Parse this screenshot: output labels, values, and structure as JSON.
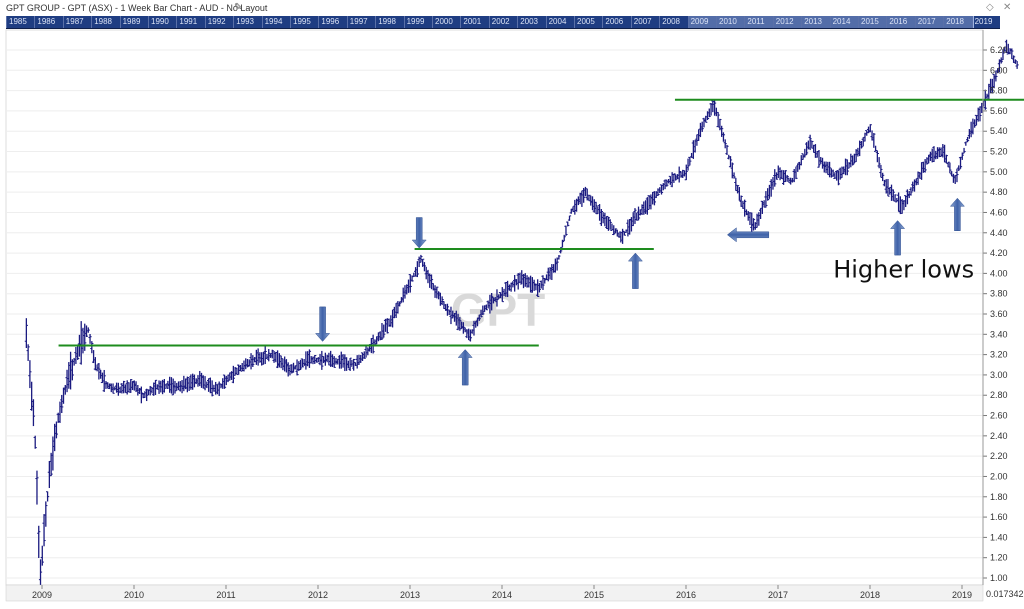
{
  "window": {
    "title": "GPT GROUP - GPT (ASX) - 1 Week Bar Chart - AUD - No Layout",
    "edit_icon": "pencil-icon",
    "extra_icons": [
      "diamond-icon",
      "close-icon"
    ]
  },
  "year_strip": {
    "labels": [
      "1985",
      "1986",
      "1987",
      "1988",
      "1989",
      "1990",
      "1991",
      "1992",
      "1993",
      "1994",
      "1995",
      "1996",
      "1997",
      "1998",
      "1999",
      "2000",
      "2001",
      "2002",
      "2003",
      "2004",
      "2005",
      "2006",
      "2007",
      "2008",
      "2009",
      "2010",
      "2011",
      "2012",
      "2013",
      "2014",
      "2015",
      "2016",
      "2017",
      "2018",
      "2019"
    ],
    "selected_from": "2009",
    "selected_to": "2018"
  },
  "chart_data": {
    "type": "bar",
    "subtype": "ohlc-weekly",
    "symbol": "GPT",
    "xlabel": "",
    "ylabel": "",
    "x_ticks": [
      "2009",
      "2010",
      "2011",
      "2012",
      "2013",
      "2014",
      "2015",
      "2016",
      "2017",
      "2018",
      "2019"
    ],
    "y_ticks": [
      "1.00",
      "1.20",
      "1.40",
      "1.60",
      "1.80",
      "2.00",
      "2.20",
      "2.40",
      "2.60",
      "2.80",
      "3.00",
      "3.20",
      "3.40",
      "3.60",
      "3.80",
      "4.00",
      "4.20",
      "4.40",
      "4.60",
      "4.80",
      "5.00",
      "5.20",
      "5.40",
      "5.60",
      "5.80",
      "6.00",
      "6.20"
    ],
    "ylim": [
      0.93,
      6.38
    ],
    "x_range": [
      2008.82,
      2019.12
    ],
    "corner_readout": "0.017342",
    "grid": "horizontal",
    "series_color": "#1a1a80",
    "price_path": [
      [
        2008.83,
        3.4
      ],
      [
        2008.92,
        2.5
      ],
      [
        2008.98,
        1.0
      ],
      [
        2009.08,
        2.0
      ],
      [
        2009.18,
        2.6
      ],
      [
        2009.28,
        2.95
      ],
      [
        2009.4,
        3.25
      ],
      [
        2009.5,
        3.45
      ],
      [
        2009.58,
        3.1
      ],
      [
        2009.7,
        2.9
      ],
      [
        2009.85,
        2.85
      ],
      [
        2010.0,
        2.9
      ],
      [
        2010.1,
        2.8
      ],
      [
        2010.3,
        2.9
      ],
      [
        2010.5,
        2.88
      ],
      [
        2010.7,
        2.95
      ],
      [
        2010.9,
        2.85
      ],
      [
        2011.05,
        3.0
      ],
      [
        2011.3,
        3.15
      ],
      [
        2011.5,
        3.2
      ],
      [
        2011.7,
        3.05
      ],
      [
        2011.9,
        3.15
      ],
      [
        2012.1,
        3.15
      ],
      [
        2012.4,
        3.1
      ],
      [
        2012.6,
        3.3
      ],
      [
        2012.8,
        3.55
      ],
      [
        2013.0,
        3.9
      ],
      [
        2013.12,
        4.15
      ],
      [
        2013.2,
        3.95
      ],
      [
        2013.4,
        3.65
      ],
      [
        2013.55,
        3.5
      ],
      [
        2013.65,
        3.38
      ],
      [
        2013.8,
        3.65
      ],
      [
        2014.0,
        3.8
      ],
      [
        2014.2,
        3.95
      ],
      [
        2014.4,
        3.85
      ],
      [
        2014.6,
        4.1
      ],
      [
        2014.75,
        4.6
      ],
      [
        2014.9,
        4.8
      ],
      [
        2015.1,
        4.55
      ],
      [
        2015.3,
        4.35
      ],
      [
        2015.45,
        4.55
      ],
      [
        2015.6,
        4.7
      ],
      [
        2015.8,
        4.9
      ],
      [
        2016.0,
        5.0
      ],
      [
        2016.15,
        5.4
      ],
      [
        2016.3,
        5.68
      ],
      [
        2016.45,
        5.2
      ],
      [
        2016.6,
        4.7
      ],
      [
        2016.75,
        4.45
      ],
      [
        2016.9,
        4.8
      ],
      [
        2017.0,
        5.0
      ],
      [
        2017.15,
        4.9
      ],
      [
        2017.35,
        5.3
      ],
      [
        2017.5,
        5.05
      ],
      [
        2017.65,
        4.95
      ],
      [
        2017.85,
        5.15
      ],
      [
        2018.0,
        5.45
      ],
      [
        2018.15,
        4.9
      ],
      [
        2018.35,
        4.65
      ],
      [
        2018.5,
        4.9
      ],
      [
        2018.65,
        5.15
      ],
      [
        2018.8,
        5.2
      ],
      [
        2018.92,
        4.9
      ],
      [
        2019.05,
        5.3
      ],
      [
        2019.2,
        5.6
      ],
      [
        2019.35,
        5.9
      ],
      [
        2019.48,
        6.25
      ],
      [
        2019.6,
        6.05
      ]
    ],
    "resistance_lines": [
      {
        "x_start": 2009.18,
        "x_end": 2014.4,
        "y": 3.29,
        "color": "#1e8c1e"
      },
      {
        "x_start": 2013.05,
        "x_end": 2015.65,
        "y": 4.24,
        "color": "#1e8c1e"
      },
      {
        "x_start": 2015.88,
        "x_end": 2019.9,
        "y": 5.71,
        "color": "#1e8c1e"
      }
    ],
    "arrows": [
      {
        "direction": "down",
        "x": 2012.05,
        "y_tail": 3.67,
        "y_head": 3.33
      },
      {
        "direction": "down",
        "x": 2013.1,
        "y_tail": 4.55,
        "y_head": 4.25
      },
      {
        "direction": "up",
        "x": 2013.6,
        "y_tail": 2.9,
        "y_head": 3.25
      },
      {
        "direction": "up",
        "x": 2015.45,
        "y_tail": 3.85,
        "y_head": 4.2
      },
      {
        "direction": "left",
        "y": 4.38,
        "x_tail": 2016.9,
        "x_head": 2016.45
      },
      {
        "direction": "up",
        "x": 2018.3,
        "y_tail": 4.18,
        "y_head": 4.52
      },
      {
        "direction": "up",
        "x": 2018.95,
        "y_tail": 4.42,
        "y_head": 4.74
      }
    ],
    "annotations": [
      {
        "text": "Higher lows",
        "x": 2017.6,
        "y": 3.96
      }
    ],
    "watermark": "GPT"
  }
}
